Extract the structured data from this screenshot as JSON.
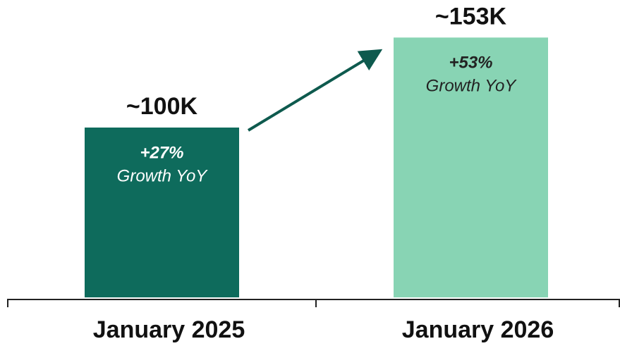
{
  "chart_data": {
    "type": "bar",
    "categories": [
      "January 2025",
      "January 2026"
    ],
    "values": [
      100,
      153
    ],
    "value_labels": [
      "~100K",
      "~153K"
    ],
    "colors": [
      "#0e6b5c",
      "#88d4b4"
    ],
    "annotations": [
      {
        "growth": "+27%",
        "text": "Growth YoY"
      },
      {
        "growth": "+53%",
        "text": "Growth YoY"
      }
    ]
  }
}
